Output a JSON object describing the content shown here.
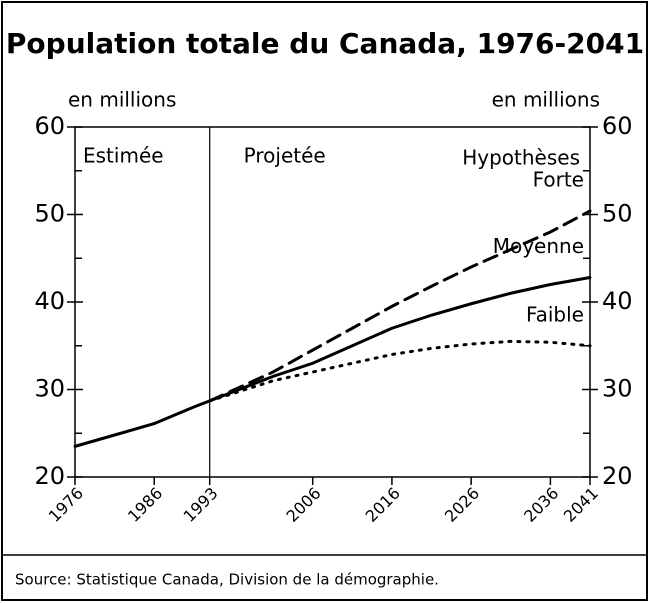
{
  "chart_data": {
    "type": "line",
    "title": "Population totale du Canada, 1976-2041",
    "ylabel": "en millions",
    "y2label": "en millions",
    "annotations": [
      "Projetée",
      "Hypothèses"
    ],
    "source": "Source: Statistique Canada, Division de la démographie.",
    "x": [
      1976,
      1981,
      1986,
      1991,
      1993,
      2001,
      2006,
      2011,
      2016,
      2021,
      2026,
      2031,
      2036,
      2041
    ],
    "series": [
      {
        "name": "Estimée",
        "color": "#000000",
        "dash": "solid",
        "values": [
          23.5,
          24.8,
          26.1,
          28.0,
          28.7,
          null,
          null,
          null,
          null,
          null,
          null,
          null,
          null,
          null
        ]
      },
      {
        "name": "Forte",
        "color": "#000000",
        "dash": "dashed",
        "values": [
          null,
          null,
          null,
          null,
          28.7,
          32.0,
          34.5,
          37.0,
          39.5,
          41.8,
          44.0,
          46.0,
          48.0,
          50.4
        ]
      },
      {
        "name": "Moyenne",
        "color": "#000000",
        "dash": "solid",
        "values": [
          null,
          null,
          null,
          null,
          28.7,
          31.5,
          33.0,
          35.0,
          37.0,
          38.5,
          39.8,
          41.0,
          42.0,
          42.8
        ]
      },
      {
        "name": "Faible",
        "color": "#000000",
        "dash": "dotted",
        "values": [
          null,
          null,
          null,
          null,
          28.7,
          31.0,
          32.0,
          33.0,
          34.0,
          34.7,
          35.2,
          35.5,
          35.4,
          35.0
        ]
      }
    ],
    "divider": 1993,
    "xlim": [
      1976,
      2041
    ],
    "xticks": [
      1976,
      1986,
      1993,
      2006,
      2016,
      2026,
      2036,
      2041
    ],
    "ylim": [
      20,
      60
    ],
    "yticks": [
      20,
      30,
      40,
      50,
      60
    ],
    "yminorticks": [
      25,
      35,
      45,
      55
    ],
    "y2lim": [
      20,
      60
    ],
    "y2ticks": [
      20,
      30,
      40,
      50,
      60
    ]
  }
}
